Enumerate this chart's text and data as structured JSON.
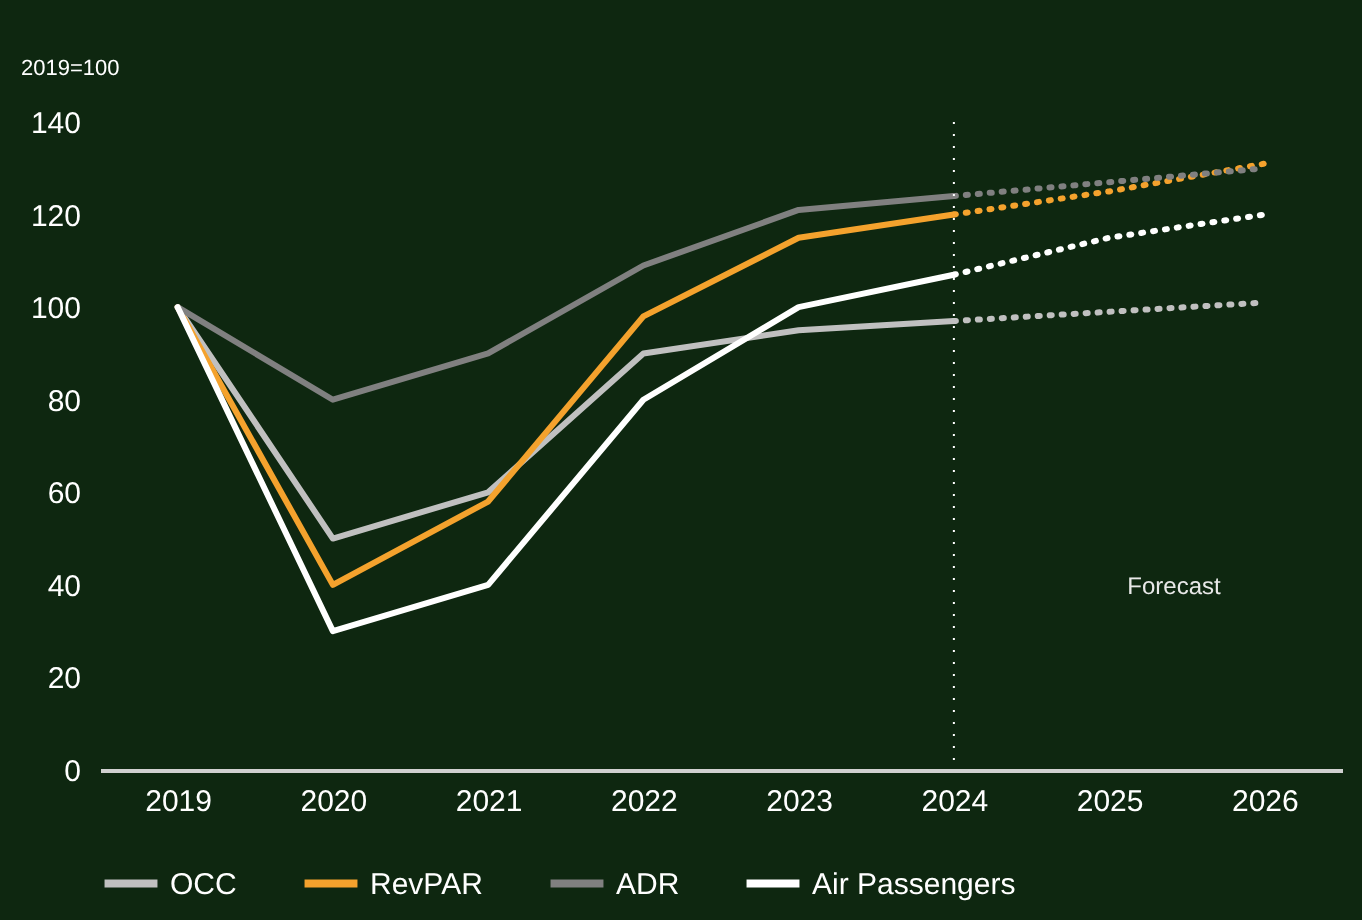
{
  "chart_data": {
    "type": "line",
    "ylabel": "2019=100",
    "categories": [
      "2019",
      "2020",
      "2021",
      "2022",
      "2023",
      "2024",
      "2025",
      "2026"
    ],
    "series": [
      {
        "name": "OCC",
        "color": "#c0c0c0",
        "values": [
          100,
          50,
          60,
          90,
          95,
          97,
          null,
          null
        ]
      },
      {
        "name": "RevPAR",
        "color": "#f4a22d",
        "values": [
          100,
          40,
          58,
          98,
          115,
          120,
          null,
          null
        ]
      },
      {
        "name": "ADR",
        "color": "#808080",
        "values": [
          100,
          80,
          90,
          109,
          121,
          124,
          null,
          null
        ]
      },
      {
        "name": "Air Passengers",
        "color": "#ffffff",
        "values": [
          100,
          30,
          40,
          80,
          100,
          107,
          null,
          null
        ]
      },
      {
        "color": "#c0c0c0",
        "line_style": "dotted",
        "values": [
          null,
          null,
          null,
          null,
          null,
          97,
          99,
          101
        ]
      },
      {
        "color": "#f4a22d",
        "line_style": "dotted",
        "values": [
          null,
          null,
          null,
          null,
          null,
          120,
          125,
          131
        ]
      },
      {
        "color": "#808080",
        "line_style": "dotted",
        "values": [
          null,
          null,
          null,
          null,
          null,
          124,
          127,
          130
        ]
      },
      {
        "color": "#ffffff",
        "line_style": "dotted",
        "values": [
          null,
          null,
          null,
          null,
          null,
          107,
          115,
          120
        ]
      }
    ],
    "ylim": [
      0,
      140
    ],
    "yticks": [
      0,
      20,
      40,
      60,
      80,
      100,
      120,
      140
    ],
    "ref_lines": [
      {
        "axis": "x",
        "value": "2024",
        "color": "#ffffff",
        "line_style": "dotted"
      }
    ],
    "annotations": [
      "Forecast"
    ],
    "grid": false,
    "legend": "bottom",
    "marker": "none"
  }
}
